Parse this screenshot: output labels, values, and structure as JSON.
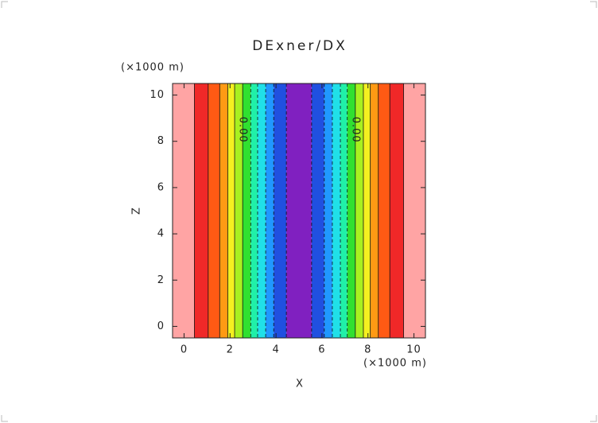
{
  "chart_data": {
    "type": "contour",
    "title": "DExner/DX",
    "x_label": "X",
    "y_label": "Z",
    "x_unit": "(×1000 m)",
    "y_unit": "(×1000 m)",
    "xlim": [
      -0.5,
      10.5
    ],
    "ylim": [
      -0.5,
      10.5
    ],
    "xticks": [
      0,
      2,
      4,
      6,
      8,
      10
    ],
    "yticks": [
      0,
      2,
      4,
      6,
      8,
      10
    ],
    "bands": [
      {
        "x0": -0.5,
        "x1": 0.45,
        "color": "#ffa4a4"
      },
      {
        "x0": 0.45,
        "x1": 1.05,
        "color": "#f02828"
      },
      {
        "x0": 1.05,
        "x1": 1.55,
        "color": "#ff5a14"
      },
      {
        "x0": 1.55,
        "x1": 1.9,
        "color": "#ff9a14"
      },
      {
        "x0": 1.9,
        "x1": 2.2,
        "color": "#f4f020"
      },
      {
        "x0": 2.2,
        "x1": 2.55,
        "color": "#a8f020"
      },
      {
        "x0": 2.55,
        "x1": 2.9,
        "color": "#30e030"
      },
      {
        "x0": 2.9,
        "x1": 3.2,
        "color": "#20f0a8"
      },
      {
        "x0": 3.2,
        "x1": 3.55,
        "color": "#20e0e8"
      },
      {
        "x0": 3.55,
        "x1": 3.9,
        "color": "#2098ff"
      },
      {
        "x0": 3.9,
        "x1": 4.45,
        "color": "#2050e0"
      },
      {
        "x0": 4.45,
        "x1": 5.55,
        "color": "#8020c0"
      },
      {
        "x0": 5.55,
        "x1": 6.1,
        "color": "#2050e0"
      },
      {
        "x0": 6.1,
        "x1": 6.45,
        "color": "#2098ff"
      },
      {
        "x0": 6.45,
        "x1": 6.8,
        "color": "#20e0e8"
      },
      {
        "x0": 6.8,
        "x1": 7.1,
        "color": "#20f0a8"
      },
      {
        "x0": 7.1,
        "x1": 7.45,
        "color": "#30e030"
      },
      {
        "x0": 7.45,
        "x1": 7.8,
        "color": "#a8f020"
      },
      {
        "x0": 7.8,
        "x1": 8.1,
        "color": "#f4f020"
      },
      {
        "x0": 8.1,
        "x1": 8.45,
        "color": "#ff9a14"
      },
      {
        "x0": 8.45,
        "x1": 8.95,
        "color": "#ff5a14"
      },
      {
        "x0": 8.95,
        "x1": 9.55,
        "color": "#f02828"
      },
      {
        "x0": 9.55,
        "x1": 10.5,
        "color": "#ffa4a4"
      }
    ],
    "annotations": [
      {
        "text": "0.00",
        "x": 2.55,
        "y": 8.5
      },
      {
        "text": "0.00",
        "x": 7.45,
        "y": 8.5
      }
    ]
  }
}
